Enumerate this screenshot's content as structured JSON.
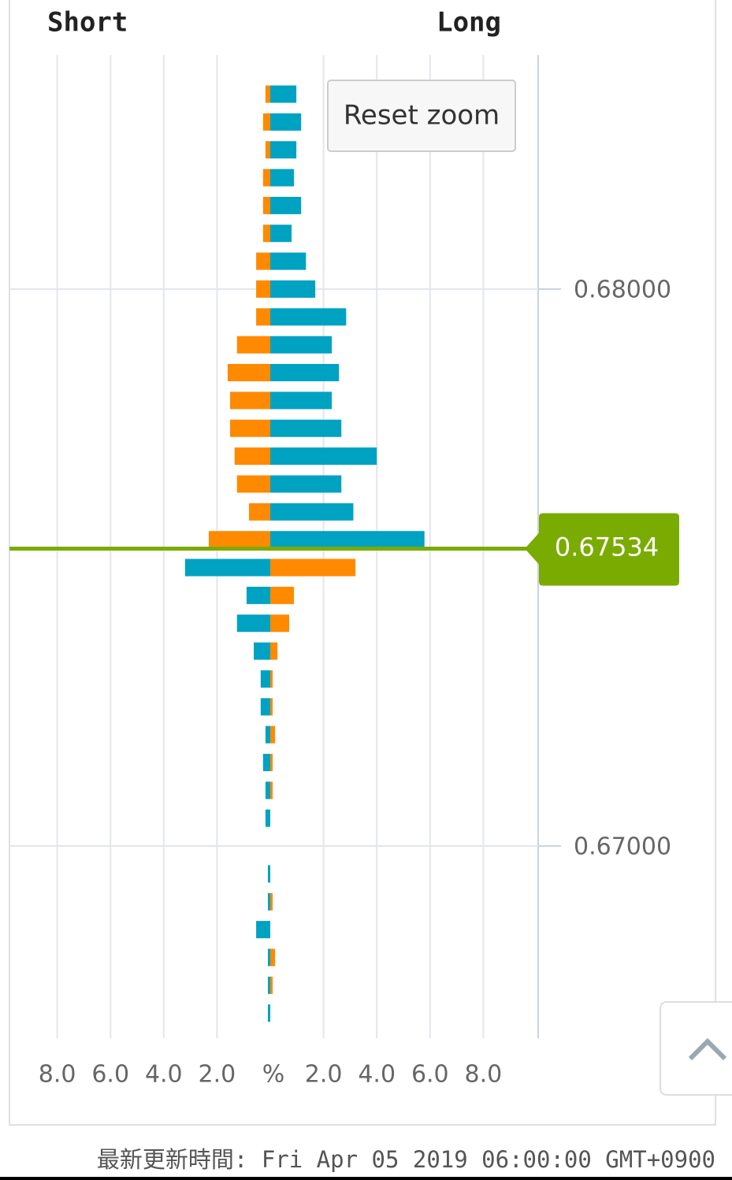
{
  "chart_data": {
    "type": "butterfly-bar",
    "left_title": "Short",
    "right_title": "Long",
    "button": "Reset zoom",
    "x_label": "%",
    "y": [
      0.6835,
      0.683,
      0.6825,
      0.682,
      0.6815,
      0.681,
      0.6805,
      0.68,
      0.6795,
      0.679,
      0.6785,
      0.678,
      0.6775,
      0.677,
      0.6765,
      0.676,
      0.6755,
      0.675,
      0.6745,
      0.674,
      0.6735,
      0.673,
      0.6725,
      0.672,
      0.6715,
      0.671,
      0.6705,
      0.67,
      0.6695,
      0.669,
      0.6685,
      0.668,
      0.6675,
      0.667
    ],
    "series": [
      {
        "side": "long",
        "color": "#00a2c2",
        "values": [
          0.98,
          1.16,
          0.98,
          0.89,
          1.16,
          0.8,
          1.34,
          1.69,
          2.85,
          2.31,
          2.58,
          2.31,
          2.67,
          4.0,
          2.67,
          3.12,
          5.79,
          null,
          null,
          null,
          null,
          null,
          null,
          null,
          null,
          null,
          null,
          null,
          null,
          null,
          null,
          null,
          null,
          null
        ]
      },
      {
        "side": "short",
        "color": "#ff8a00",
        "values": [
          0.18,
          0.27,
          0.18,
          0.27,
          0.27,
          0.27,
          0.53,
          0.53,
          0.53,
          1.25,
          1.6,
          1.51,
          1.51,
          1.34,
          1.25,
          0.8,
          2.31,
          null,
          null,
          null,
          null,
          null,
          null,
          null,
          null,
          null,
          null,
          null,
          null,
          null,
          null,
          null,
          null,
          null
        ]
      },
      {
        "side": "short",
        "color": "#00a2c2",
        "values": [
          null,
          null,
          null,
          null,
          null,
          null,
          null,
          null,
          null,
          null,
          null,
          null,
          null,
          null,
          null,
          null,
          null,
          3.2,
          0.89,
          1.25,
          0.62,
          0.36,
          0.36,
          0.18,
          0.27,
          0.18,
          0.18,
          null,
          0.09,
          0.09,
          0.53,
          0.09,
          0.09,
          0.09
        ]
      },
      {
        "side": "long",
        "color": "#ff8a00",
        "values": [
          null,
          null,
          null,
          null,
          null,
          null,
          null,
          null,
          null,
          null,
          null,
          null,
          null,
          null,
          null,
          null,
          null,
          3.2,
          0.89,
          0.71,
          0.27,
          0.09,
          0.09,
          0.18,
          0.09,
          0.09,
          null,
          null,
          null,
          0.09,
          null,
          0.18,
          0.09,
          null
        ]
      }
    ],
    "xlim": [
      0,
      10
    ],
    "xticks": [
      {
        "value": 2,
        "label": "2.0"
      },
      {
        "value": 4,
        "label": "4.0"
      },
      {
        "value": 6,
        "label": "6.0"
      },
      {
        "value": 8,
        "label": "8.0"
      }
    ],
    "ylim": [
      0.66655,
      0.6842
    ],
    "yticks": [
      {
        "value": 0.67,
        "label": "0.67000"
      },
      {
        "value": 0.68,
        "label": "0.68000"
      }
    ],
    "current_price": {
      "value": 0.67534,
      "label": "0.67534",
      "color": "#7aab00"
    },
    "grid": true,
    "footer": "最新更新時間: Fri Apr 05 2019 06:00:00 GMT+0900"
  }
}
